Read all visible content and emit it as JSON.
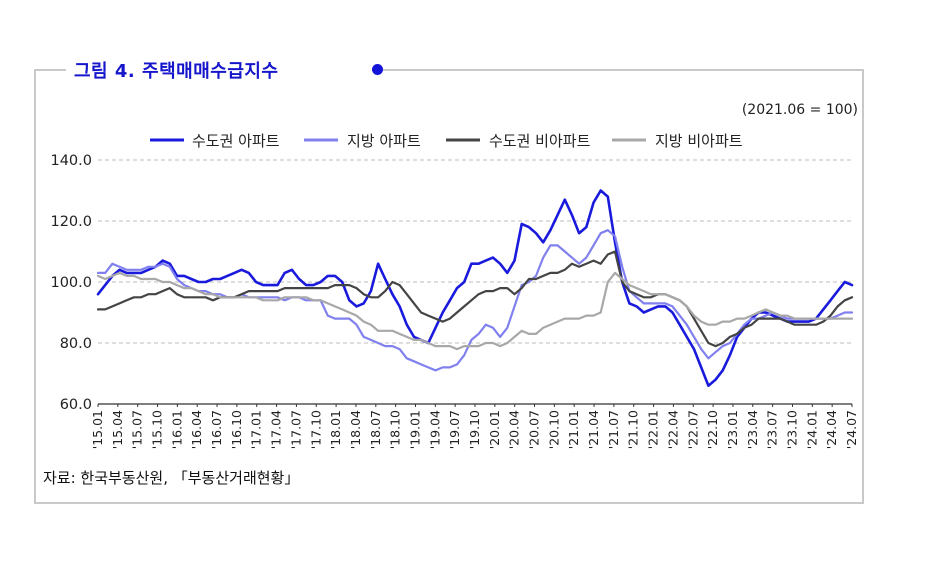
{
  "figure": {
    "title": "그림  4.  주택매매수급지수",
    "unit_note": "(2021.06  =  100)",
    "source": "자료:  한국부동산원, 「부동산거래현황」"
  },
  "chart_data": {
    "type": "line",
    "title": "주택매매수급지수",
    "ylim": [
      60,
      140
    ],
    "yticks": [
      "60.0",
      "80.0",
      "100.0",
      "120.0",
      "140.0"
    ],
    "xtick_labels": [
      "'15.01",
      "'15.04",
      "'15.07",
      "'15.10",
      "'16.01",
      "'16.04",
      "'16.07",
      "'16.10",
      "'17.01",
      "'17.04",
      "'17.07",
      "'17.10",
      "'18.01",
      "'18.04",
      "'18.07",
      "'18.10",
      "'19.01",
      "'19.04",
      "'19.07",
      "'19.10",
      "'20.01",
      "'20.04",
      "'20.07",
      "'20.10",
      "'21.01",
      "'21.04",
      "'21.07",
      "'21.10",
      "'22.01",
      "'22.04",
      "'22.07",
      "'22.10",
      "'23.01",
      "'23.04",
      "'23.07",
      "'23.10",
      "'24.01",
      "'24.04",
      "'24.07"
    ],
    "grid": "horizontal dashed",
    "legend_position": "top",
    "series": [
      {
        "name": "수도권 아파트",
        "color": "#1a1add",
        "values": [
          96,
          99,
          102,
          104,
          103,
          103,
          103,
          104,
          105,
          107,
          106,
          102,
          102,
          101,
          100,
          100,
          101,
          101,
          102,
          103,
          104,
          103,
          100,
          99,
          99,
          99,
          103,
          104,
          101,
          99,
          99,
          100,
          102,
          102,
          100,
          94,
          92,
          93,
          97,
          106,
          101,
          96,
          92,
          86,
          82,
          81,
          80,
          85,
          90,
          94,
          98,
          100,
          106,
          106,
          107,
          108,
          106,
          103,
          107,
          119,
          118,
          116,
          113,
          117,
          122,
          127,
          122,
          116,
          118,
          126,
          130,
          128,
          113,
          100,
          93,
          92,
          90,
          91,
          92,
          92,
          90,
          86,
          82,
          78,
          72,
          66,
          68,
          71,
          76,
          82,
          85,
          88,
          90,
          90,
          89,
          88,
          87,
          87,
          87,
          87,
          88,
          91,
          94,
          97,
          100,
          99
        ]
      },
      {
        "name": "지방 아파트",
        "color": "#8080ee",
        "values": [
          103,
          103,
          106,
          105,
          104,
          104,
          104,
          105,
          105,
          106,
          105,
          101,
          99,
          98,
          97,
          97,
          96,
          96,
          95,
          95,
          96,
          95,
          95,
          95,
          95,
          95,
          94,
          95,
          95,
          94,
          94,
          94,
          89,
          88,
          88,
          88,
          86,
          82,
          81,
          80,
          79,
          79,
          78,
          75,
          74,
          73,
          72,
          71,
          72,
          72,
          73,
          76,
          81,
          83,
          86,
          85,
          82,
          85,
          92,
          99,
          100,
          102,
          108,
          112,
          112,
          110,
          108,
          106,
          108,
          112,
          116,
          117,
          115,
          105,
          97,
          95,
          93,
          93,
          93,
          93,
          92,
          89,
          86,
          82,
          78,
          75,
          77,
          79,
          80,
          83,
          86,
          88,
          88,
          89,
          90,
          89,
          88,
          88,
          88,
          88,
          88,
          88,
          88,
          89,
          90,
          90
        ]
      },
      {
        "name": "수도권 비아파트",
        "color": "#444444",
        "values": [
          91,
          91,
          92,
          93,
          94,
          95,
          95,
          96,
          96,
          97,
          98,
          96,
          95,
          95,
          95,
          95,
          94,
          95,
          95,
          95,
          96,
          97,
          97,
          97,
          97,
          97,
          98,
          98,
          98,
          98,
          98,
          98,
          98,
          99,
          99,
          99,
          98,
          96,
          95,
          95,
          97,
          100,
          99,
          96,
          93,
          90,
          89,
          88,
          87,
          88,
          90,
          92,
          94,
          96,
          97,
          97,
          98,
          98,
          96,
          98,
          101,
          101,
          102,
          103,
          103,
          104,
          106,
          105,
          106,
          107,
          106,
          109,
          110,
          100,
          97,
          96,
          95,
          95,
          96,
          96,
          95,
          94,
          92,
          88,
          84,
          80,
          79,
          80,
          82,
          83,
          85,
          86,
          88,
          88,
          88,
          88,
          87,
          86,
          86,
          86,
          86,
          87,
          89,
          92,
          94,
          95
        ]
      },
      {
        "name": "지방 비아파트",
        "color": "#a8a8a8",
        "values": [
          102,
          101,
          102,
          103,
          102,
          102,
          101,
          101,
          101,
          100,
          100,
          99,
          98,
          98,
          97,
          96,
          96,
          95,
          95,
          95,
          95,
          95,
          95,
          94,
          94,
          94,
          95,
          95,
          95,
          95,
          94,
          94,
          93,
          92,
          91,
          90,
          89,
          87,
          86,
          84,
          84,
          84,
          83,
          82,
          81,
          81,
          80,
          79,
          79,
          79,
          78,
          79,
          79,
          79,
          80,
          80,
          79,
          80,
          82,
          84,
          83,
          83,
          85,
          86,
          87,
          88,
          88,
          88,
          89,
          89,
          90,
          100,
          103,
          101,
          99,
          98,
          97,
          96,
          96,
          96,
          95,
          94,
          92,
          89,
          87,
          86,
          86,
          87,
          87,
          88,
          88,
          89,
          90,
          91,
          90,
          89,
          89,
          88,
          88,
          88,
          88,
          88,
          88,
          88,
          88,
          88
        ]
      }
    ]
  }
}
